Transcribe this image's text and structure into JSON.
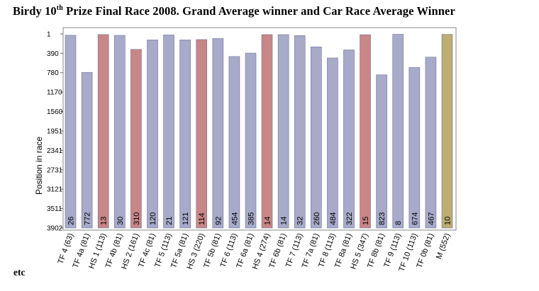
{
  "title": {
    "prefix": "Birdy  10",
    "sup": "th",
    "suffix": " Prize Final Race 2008.  Grand Average winner and Car Race Average Winner"
  },
  "footer": "etc",
  "colors": {
    "default": "#a7aac9",
    "highlight": "#c98686",
    "special": "#bcad72",
    "border": "#6f7497"
  },
  "chart_data": {
    "type": "bar",
    "ylabel": "Position in race",
    "y_inverted": true,
    "ylim": [
      1,
      3902
    ],
    "yticks": [
      "1",
      "390",
      "780",
      "1170",
      "1560",
      "1951",
      "2341",
      "2731",
      "3121",
      "3511",
      "3902"
    ],
    "grid": false,
    "categories": [
      "TF 4 (63)",
      "TF 4a (81)",
      "HS 1 (113)",
      "TF 4b (81)",
      "HS 2 (161)",
      "TF 4c (81)",
      "TF 5 (113)",
      "TF 5a (81)",
      "HS 3 (220)",
      "TF 5b (81)",
      "TF 6 (113)",
      "TF 6a (81)",
      "HS 4 (274)",
      "TF 6b (81)",
      "TF 7 (113)",
      "TF 7a (81)",
      "TF 8 (113)",
      "TF 8a (81)",
      "HS 5 (347)",
      "TF 8b (81)",
      "TF 9 (113)",
      "TF 10 (113)",
      "TF 0b (81)",
      "M (552)"
    ],
    "values": [
      26,
      772,
      13,
      30,
      310,
      120,
      21,
      121,
      114,
      92,
      454,
      385,
      14,
      14,
      32,
      260,
      484,
      322,
      15,
      823,
      8,
      674,
      467,
      10
    ],
    "value_labels": [
      "26",
      "772",
      "13",
      "30",
      "310",
      "120",
      "21",
      "121",
      "114",
      "92",
      "454",
      "385",
      "14",
      "14",
      "32",
      "260",
      "484",
      "322",
      "15",
      "823",
      "8",
      "674",
      "467",
      "10"
    ],
    "color_keys": [
      "default",
      "default",
      "highlight",
      "default",
      "highlight",
      "default",
      "default",
      "default",
      "highlight",
      "default",
      "default",
      "default",
      "highlight",
      "default",
      "default",
      "default",
      "default",
      "default",
      "highlight",
      "default",
      "default",
      "default",
      "default",
      "special"
    ]
  }
}
